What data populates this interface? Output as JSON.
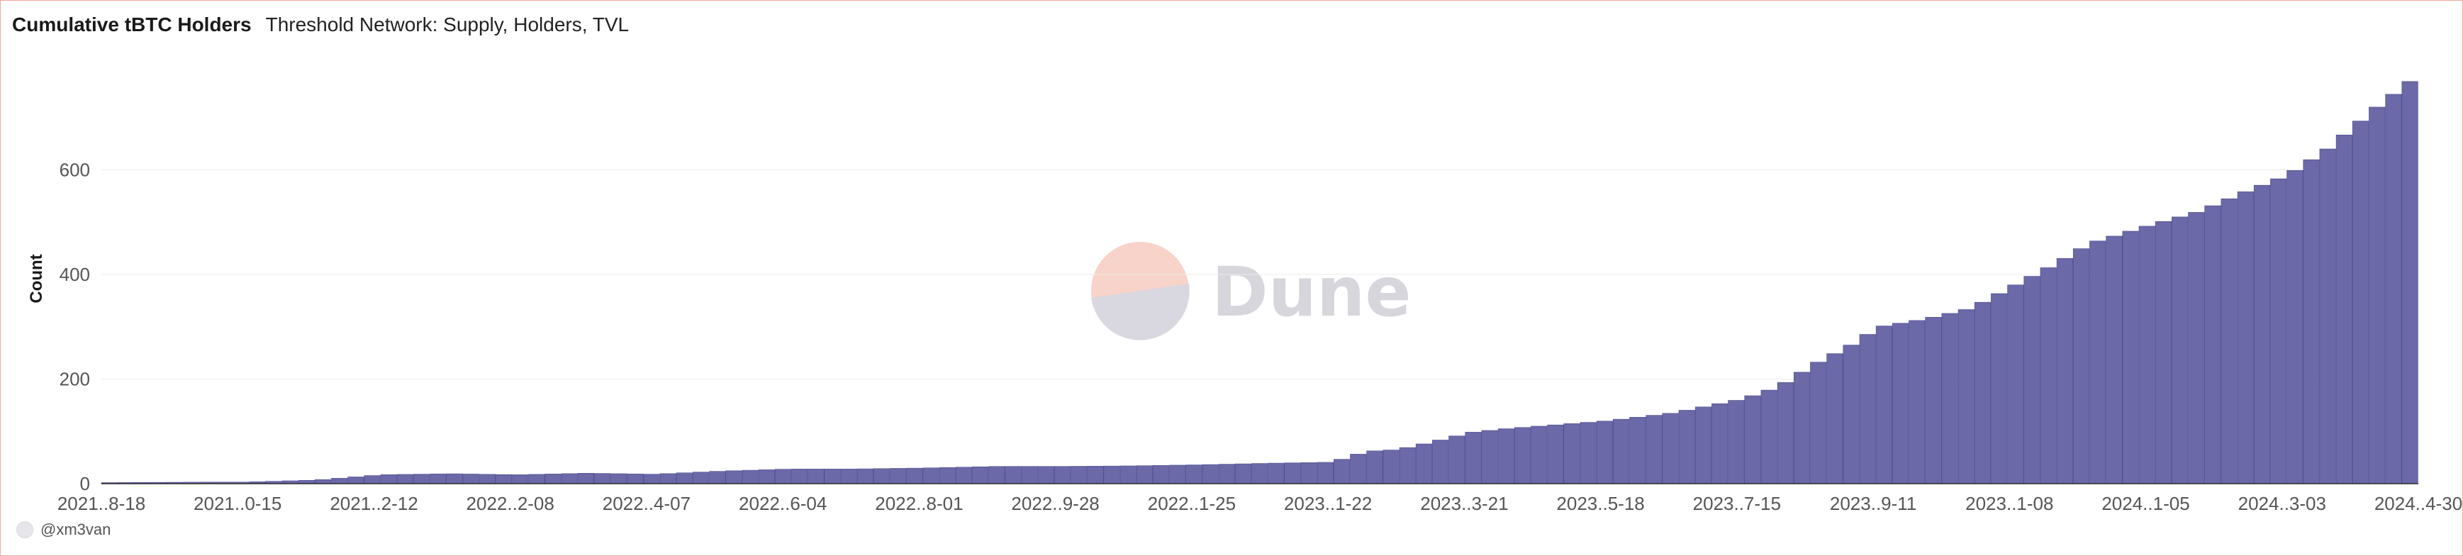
{
  "header": {
    "title": "Cumulative tBTC Holders",
    "subtitle": "Threshold Network: Supply, Holders, TVL"
  },
  "footer": {
    "author": "@xm3van"
  },
  "watermark": {
    "text": "Dune"
  },
  "colors": {
    "bar": "#6b69a8",
    "bar_edge": "#4e4c8c",
    "grid": "#ececec",
    "accent": "#f0a89a"
  },
  "chart_data": {
    "type": "bar",
    "title": "Cumulative tBTC Holders",
    "xlabel": "",
    "ylabel": "Count",
    "ylim": [
      0,
      800
    ],
    "yticks": [
      0,
      200,
      400,
      600
    ],
    "grid": true,
    "x_range": [
      "2021-08-18",
      "2024-04-30"
    ],
    "xtick_labels": [
      "2021..8-18",
      "2021..0-15",
      "2021..2-12",
      "2022..2-08",
      "2022..4-07",
      "2022..6-04",
      "2022..8-01",
      "2022..9-28",
      "2022..1-25",
      "2023..1-22",
      "2023..3-21",
      "2023..5-18",
      "2023..7-15",
      "2023..9-11",
      "2023..1-08",
      "2024..1-05",
      "2024..3-03",
      "2024..4-30"
    ],
    "series": [
      {
        "name": "",
        "x": [
          "2021-08-18",
          "2021-09-30",
          "2021-10-15",
          "2021-11-15",
          "2021-12-12",
          "2022-01-10",
          "2022-02-08",
          "2022-03-10",
          "2022-04-07",
          "2022-05-06",
          "2022-06-04",
          "2022-07-01",
          "2022-08-01",
          "2022-09-01",
          "2022-09-28",
          "2022-10-28",
          "2022-11-25",
          "2022-12-25",
          "2023-01-21",
          "2023-02-05",
          "2023-02-18",
          "2023-03-05",
          "2023-03-21",
          "2023-04-05",
          "2023-05-18",
          "2023-06-15",
          "2023-07-15",
          "2023-07-30",
          "2023-08-15",
          "2023-08-30",
          "2023-09-11",
          "2023-10-01",
          "2023-10-20",
          "2023-11-08",
          "2023-11-25",
          "2023-12-10",
          "2023-12-25",
          "2024-01-05",
          "2024-01-25",
          "2024-02-15",
          "2024-03-03",
          "2024-03-20",
          "2024-04-10",
          "2024-04-30"
        ],
        "values": [
          2,
          3,
          3,
          7,
          17,
          19,
          17,
          20,
          18,
          24,
          28,
          28,
          30,
          33,
          33,
          34,
          36,
          39,
          41,
          62,
          65,
          80,
          98,
          105,
          120,
          135,
          162,
          185,
          230,
          265,
          300,
          315,
          335,
          380,
          420,
          460,
          480,
          495,
          520,
          560,
          590,
          640,
          720,
          790
        ]
      }
    ]
  }
}
